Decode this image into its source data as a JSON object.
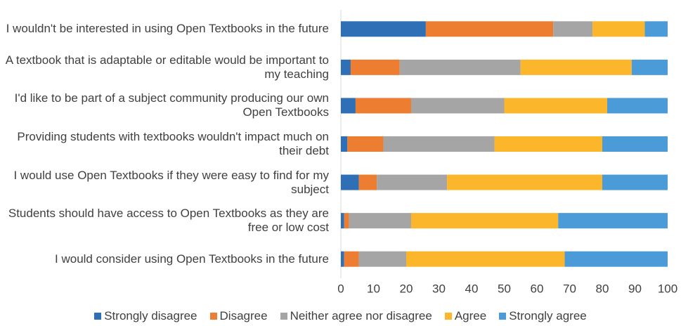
{
  "chart_data": {
    "type": "stacked_barh",
    "categories": [
      "I wouldn't be interested in using Open Textbooks in the future",
      "A textbook that is adaptable or editable would be important to my teaching",
      "I'd like to be part of a subject community producing our own Open Textbooks",
      "Providing students with textbooks wouldn't impact much on their debt",
      "I would use Open Textbooks if they were easy to find for my subject",
      "Students should have access to Open Textbooks as they are free or low cost",
      "I would consider using Open Textbooks in the future"
    ],
    "series": [
      {
        "name": "Strongly disagree",
        "color": "#2e6fb5",
        "values": [
          26,
          3,
          4.5,
          2,
          5.5,
          1,
          1
        ]
      },
      {
        "name": "Disagree",
        "color": "#ed7d31",
        "values": [
          39,
          15,
          17,
          11,
          5.5,
          1.5,
          4.5
        ]
      },
      {
        "name": "Neither agree nor disagree",
        "color": "#a5a5a5",
        "values": [
          12,
          37,
          28.5,
          34,
          21.5,
          19,
          14.5
        ]
      },
      {
        "name": "Agree",
        "color": "#fbb62c",
        "values": [
          16,
          34,
          31.5,
          33,
          47.5,
          45,
          48.5
        ]
      },
      {
        "name": "Strongly agree",
        "color": "#4b9bd8",
        "values": [
          7,
          11,
          18.5,
          20,
          20,
          33.5,
          31.5
        ]
      }
    ],
    "xlim": [
      0,
      100
    ],
    "xticks": [
      0,
      10,
      20,
      30,
      40,
      50,
      60,
      70,
      80,
      90,
      100
    ],
    "legend": "bottom"
  }
}
